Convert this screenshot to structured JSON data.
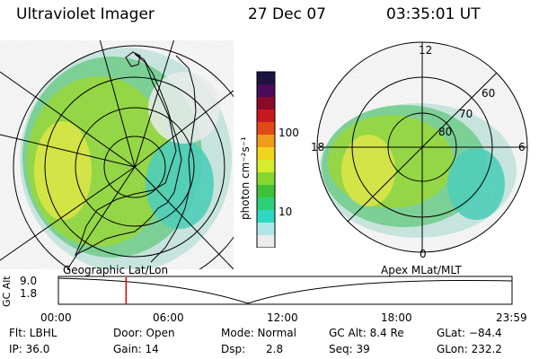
{
  "header": {
    "instrument": "Ultraviolet Imager",
    "date": "27 Dec 07",
    "time": "03:35:01 UT"
  },
  "left_map": {
    "caption": "Geographic Lat/Lon"
  },
  "right_map": {
    "caption": "Apex MLat/MLT",
    "mlt_labels": [
      "12",
      "18",
      "6",
      "0"
    ],
    "mlat_labels": [
      "60",
      "70",
      "80"
    ]
  },
  "colorbar": {
    "unit_label": "photon cm⁻²s⁻¹",
    "ticks": [
      "100",
      "10"
    ],
    "colors": [
      "#1b1340",
      "#4a0c5a",
      "#8a0a2a",
      "#c81820",
      "#e04a18",
      "#f29a1a",
      "#f2d41e",
      "#d8ec2e",
      "#86d630",
      "#3ec23a",
      "#2fcf7a",
      "#2fd8c4",
      "#aee6ea",
      "#ececec"
    ]
  },
  "altitude_plot": {
    "ylabel": "GC Alt",
    "y_ticks": [
      "9.0",
      "1.8"
    ],
    "x_ticks": [
      "00:00",
      "06:00",
      "12:00",
      "18:00",
      "23:59"
    ],
    "current_time_hours": 3.58
  },
  "info": {
    "flt": "Flt: LBHL",
    "ip": "IP: 36.0",
    "door": "Door: Open",
    "gain": "Gain: 14",
    "mode": "Mode: Normal",
    "dsp": "Dsp:      2.8",
    "gc_alt": "GC Alt: 8.4 Re",
    "seq": "Seq: 39",
    "glat": "GLat: −84.4",
    "glon": "GLon: 232.2"
  },
  "colors": {
    "marker": "#e00000"
  }
}
